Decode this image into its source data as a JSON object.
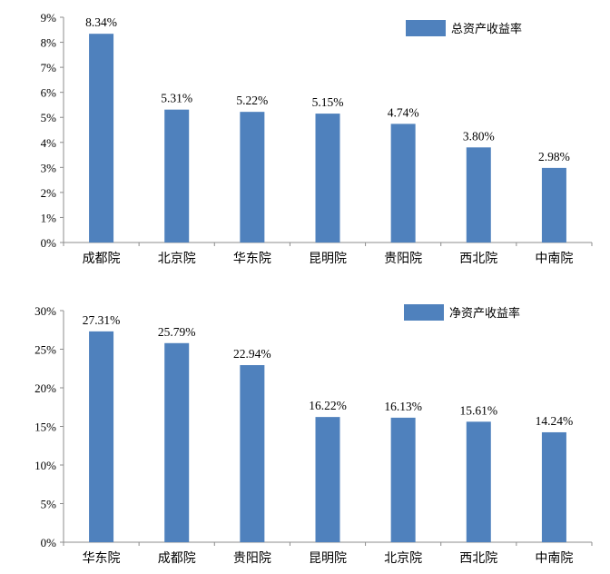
{
  "chart_data": [
    {
      "type": "bar",
      "categories": [
        "成都院",
        "北京院",
        "华东院",
        "昆明院",
        "贵阳院",
        "西北院",
        "中南院"
      ],
      "values": [
        8.34,
        5.31,
        5.22,
        5.15,
        4.74,
        3.8,
        2.98
      ],
      "data_labels": [
        "8.34%",
        "5.31%",
        "5.22%",
        "5.15%",
        "4.74%",
        "3.80%",
        "2.98%"
      ],
      "series": [
        {
          "name": "总资产收益率",
          "values": [
            8.34,
            5.31,
            5.22,
            5.15,
            4.74,
            3.8,
            2.98
          ]
        }
      ],
      "ylim": [
        0,
        9
      ],
      "y_ticks": [
        "0%",
        "1%",
        "2%",
        "3%",
        "4%",
        "5%",
        "6%",
        "7%",
        "8%",
        "9%"
      ],
      "bar_color": "#4f81bd",
      "legend_position": "top-right",
      "grid": false
    },
    {
      "type": "bar",
      "categories": [
        "华东院",
        "成都院",
        "贵阳院",
        "昆明院",
        "北京院",
        "西北院",
        "中南院"
      ],
      "values": [
        27.31,
        25.79,
        22.94,
        16.22,
        16.13,
        15.61,
        14.24
      ],
      "data_labels": [
        "27.31%",
        "25.79%",
        "22.94%",
        "16.22%",
        "16.13%",
        "15.61%",
        "14.24%"
      ],
      "series": [
        {
          "name": "净资产收益率",
          "values": [
            27.31,
            25.79,
            22.94,
            16.22,
            16.13,
            15.61,
            14.24
          ]
        }
      ],
      "ylim": [
        0,
        30
      ],
      "y_ticks": [
        "0%",
        "5%",
        "10%",
        "15%",
        "20%",
        "25%",
        "30%"
      ],
      "bar_color": "#4f81bd",
      "legend_position": "top-right",
      "grid": false
    }
  ]
}
